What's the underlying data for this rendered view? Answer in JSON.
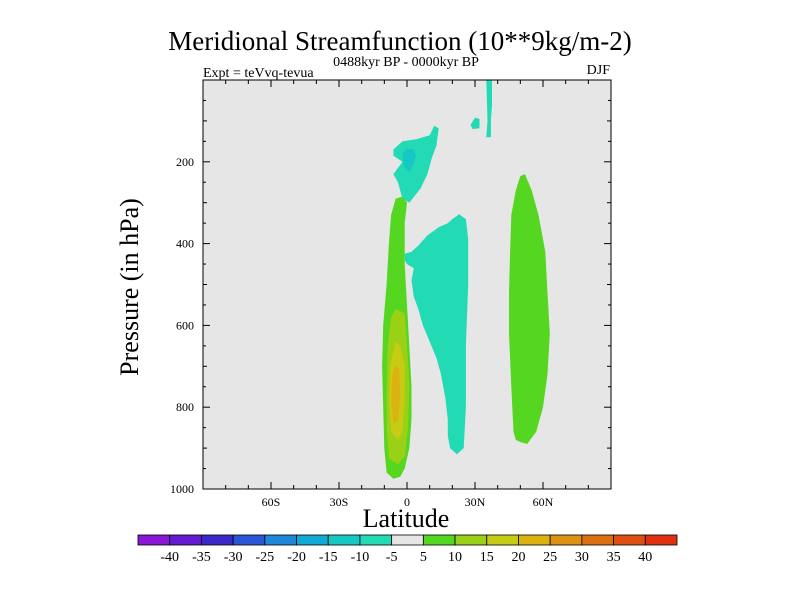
{
  "chart_data": {
    "type": "contour",
    "title": "Meridional Streamfunction (10**9kg/m-2)",
    "subtitle_left": "Expt = teVvq-tevua",
    "subtitle_center": "0488kyr BP - 0000kyr BP",
    "subtitle_right": "DJF",
    "xlabel": "Latitude",
    "ylabel": "Pressure (in hPa)",
    "xlim": [
      -90,
      90
    ],
    "ylim": [
      0,
      1000
    ],
    "y_inverted": true,
    "x_ticks": [
      {
        "value": -60,
        "label": "60S"
      },
      {
        "value": -30,
        "label": "30S"
      },
      {
        "value": 0,
        "label": "0"
      },
      {
        "value": 30,
        "label": "30N"
      },
      {
        "value": 60,
        "label": "60N"
      }
    ],
    "y_ticks": [
      200,
      400,
      600,
      800,
      1000
    ],
    "background_color": "#e6e6e6",
    "colorbar": {
      "levels": [
        -40,
        -35,
        -30,
        -25,
        -20,
        -15,
        -10,
        -5,
        5,
        10,
        15,
        20,
        25,
        30,
        35,
        40
      ],
      "colors": [
        "#8a16d6",
        "#6419d2",
        "#3a28c8",
        "#2a55d4",
        "#1f86d8",
        "#10aad5",
        "#16c8c4",
        "#22dbb5",
        "#e6e6e6",
        "#55d620",
        "#9ad016",
        "#c6cc14",
        "#dcb20e",
        "#dc9212",
        "#dc7010",
        "#de5012",
        "#e03010"
      ]
    },
    "features": [
      {
        "name": "upper-negative-cell",
        "level_min": -10,
        "level_max": -5,
        "extent_lat": [
          -6,
          14
        ],
        "extent_hpa": [
          140,
          300
        ]
      },
      {
        "name": "upper-negative-core",
        "level_min": -15,
        "level_max": -10,
        "extent_lat": [
          -2,
          4
        ],
        "extent_hpa": [
          170,
          230
        ]
      },
      {
        "name": "top-thin-negative-streak",
        "level_min": -10,
        "level_max": -5,
        "extent_lat": [
          35,
          38
        ],
        "extent_hpa": [
          0,
          140
        ]
      },
      {
        "name": "small-negative-patch",
        "level_min": -10,
        "level_max": -5,
        "extent_lat": [
          28,
          32
        ],
        "extent_hpa": [
          90,
          120
        ]
      },
      {
        "name": "mid-negative-cell",
        "level_min": -10,
        "level_max": -5,
        "extent_lat": [
          -1,
          27
        ],
        "extent_hpa": [
          330,
          920
        ]
      },
      {
        "name": "tropical-positive-cell",
        "level_min": 5,
        "level_max": 20,
        "extent_lat": [
          -11,
          2
        ],
        "extent_hpa": [
          280,
          970
        ]
      },
      {
        "name": "tropical-positive-core",
        "level_min": 20,
        "level_max": 25,
        "extent_lat": [
          -7,
          -3
        ],
        "extent_hpa": [
          700,
          840
        ]
      },
      {
        "name": "northern-positive-cell",
        "level_min": 5,
        "level_max": 10,
        "extent_lat": [
          45,
          63
        ],
        "extent_hpa": [
          230,
          900
        ]
      }
    ]
  }
}
